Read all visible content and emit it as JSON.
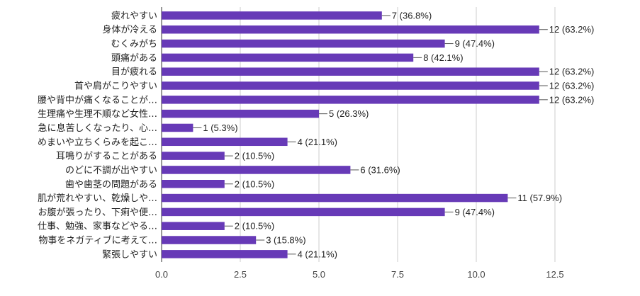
{
  "chart_data": {
    "type": "bar",
    "orientation": "horizontal",
    "title": "",
    "xlabel": "",
    "ylabel": "",
    "xlim": [
      0,
      12.5
    ],
    "x_ticks": [
      "0.0",
      "2.5",
      "5.0",
      "7.5",
      "10.0",
      "12.5"
    ],
    "x_tick_values": [
      0,
      2.5,
      5,
      7.5,
      10,
      12.5
    ],
    "grid": "vertical",
    "bar_color": "#673ab7",
    "categories": [
      "疲れやすい",
      "身体が冷える",
      "むくみがち",
      "頭痛がある",
      "目が疲れる",
      "首や肩がこりやすい",
      "腰や背中が痛くなることが…",
      "生理痛や生理不順など女性…",
      "急に息苦しくなったり、心…",
      "めまいや立ちくらみを起こ…",
      "耳鳴りがすることがある",
      "のどに不調が出やすい",
      "歯や歯茎の問題がある",
      "肌が荒れやすい、乾燥しや…",
      "お腹が張ったり、下痢や便…",
      "仕事、勉強、家事などやる…",
      "物事をネガティブに考えて…",
      "緊張しやすい"
    ],
    "values": [
      7,
      12,
      9,
      8,
      12,
      12,
      12,
      5,
      1,
      4,
      2,
      6,
      2,
      11,
      9,
      2,
      3,
      4
    ],
    "data_labels": [
      "7 (36.8%)",
      "12 (63.2%)",
      "9 (47.4%)",
      "8 (42.1%)",
      "12 (63.2%)",
      "12 (63.2%)",
      "12 (63.2%)",
      "5 (26.3%)",
      "1 (5.3%)",
      "4 (21.1%)",
      "2 (10.5%)",
      "6 (31.6%)",
      "2 (10.5%)",
      "11 (57.9%)",
      "9 (47.4%)",
      "2 (10.5%)",
      "3 (15.8%)",
      "4 (21.1%)"
    ]
  }
}
